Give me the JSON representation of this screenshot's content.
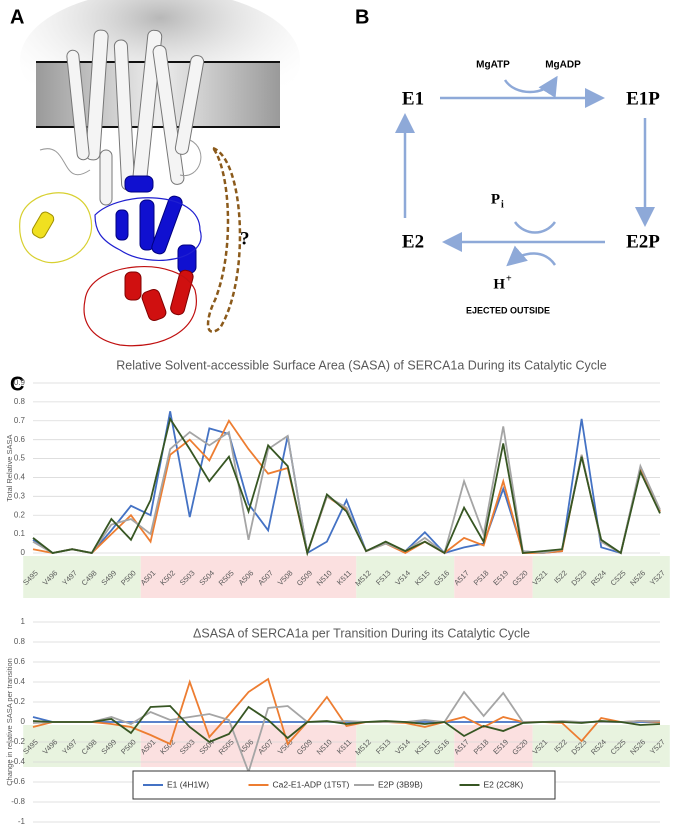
{
  "panels": {
    "a": "A",
    "b": "B",
    "c": "C"
  },
  "structure": {
    "question": "?"
  },
  "diagram": {
    "nodes": [
      "E1",
      "E1P",
      "E2P",
      "E2"
    ],
    "forward_in": "MgATP",
    "forward_out": "MgADP",
    "phosphate": "P",
    "phosphate_sub": "i",
    "proton": "H",
    "proton_sup": "+",
    "proton_note": "EJECTED OUTSIDE"
  },
  "chart_data": [
    {
      "type": "line",
      "title": "Relative Solvent-accessible Surface Area (SASA) of SERCA1a During its Catalytic Cycle",
      "y_label": "Total Relative SASA",
      "categories": [
        "S495",
        "V496",
        "Y497",
        "C498",
        "S499",
        "P500",
        "A501",
        "K502",
        "S503",
        "S504",
        "R505",
        "A506",
        "A507",
        "V508",
        "G509",
        "N510",
        "K511",
        "M512",
        "F513",
        "V514",
        "K515",
        "G516",
        "A517",
        "P518",
        "E519",
        "G520",
        "V521",
        "I522",
        "D523",
        "R524",
        "C525",
        "N526",
        "Y527"
      ],
      "ylim": [
        0,
        0.9
      ],
      "yticks": [
        0,
        0.1,
        0.2,
        0.3,
        0.4,
        0.5,
        0.6,
        0.7,
        0.8,
        0.9
      ],
      "grid": true,
      "series": [
        {
          "color": "#4472c4",
          "values": [
            0.07,
            0,
            0.02,
            0,
            0.12,
            0.25,
            0.2,
            0.75,
            0.19,
            0.66,
            0.63,
            0.26,
            0.12,
            0.62,
            0,
            0.06,
            0.28,
            0.01,
            0.05,
            0.01,
            0.11,
            0,
            0.03,
            0.05,
            0.34,
            0.01,
            0,
            0.01,
            0.71,
            0.03,
            0,
            0.45,
            0.22
          ]
        },
        {
          "color": "#ed7d31",
          "values": [
            0.02,
            0,
            0.02,
            0,
            0.1,
            0.2,
            0.06,
            0.52,
            0.6,
            0.49,
            0.7,
            0.55,
            0.42,
            0.45,
            0,
            0.3,
            0.23,
            0.01,
            0.05,
            0,
            0.06,
            0,
            0.08,
            0.04,
            0.38,
            0,
            0,
            0.01,
            0.52,
            0.06,
            0,
            0.45,
            0.22
          ]
        },
        {
          "color": "#a5a5a5",
          "values": [
            0.06,
            0,
            0.02,
            0,
            0.15,
            0.18,
            0.1,
            0.55,
            0.64,
            0.57,
            0.64,
            0.07,
            0.55,
            0.62,
            0,
            0.3,
            0.24,
            0.01,
            0.05,
            0.01,
            0.08,
            0,
            0.38,
            0.1,
            0.67,
            0.01,
            0,
            0.02,
            0.52,
            0.06,
            0,
            0.46,
            0.23
          ]
        },
        {
          "color": "#375623",
          "values": [
            0.08,
            0,
            0.02,
            0,
            0.18,
            0.07,
            0.28,
            0.71,
            0.55,
            0.38,
            0.51,
            0.22,
            0.57,
            0.46,
            0,
            0.31,
            0.22,
            0.01,
            0.06,
            0.01,
            0.06,
            0,
            0.24,
            0.06,
            0.58,
            0,
            0.01,
            0.02,
            0.51,
            0.07,
            0,
            0.43,
            0.21
          ]
        }
      ]
    },
    {
      "type": "line",
      "title": "ΔSASA of SERCA1a per Transition During its Catalytic Cycle",
      "y_label": "Change in relative SASA per transition",
      "categories": [
        "S495",
        "V496",
        "Y497",
        "C498",
        "S499",
        "P500",
        "A501",
        "K502",
        "S503",
        "S504",
        "R505",
        "A506",
        "A507",
        "V508",
        "G509",
        "N510",
        "K511",
        "M512",
        "F513",
        "V514",
        "K515",
        "G516",
        "A517",
        "P518",
        "E519",
        "G520",
        "V521",
        "I522",
        "D523",
        "R524",
        "C525",
        "N526",
        "Y527"
      ],
      "ylim": [
        -1,
        1
      ],
      "yticks": [
        -1,
        -0.8,
        -0.6,
        -0.4,
        -0.2,
        0,
        0.2,
        0.4,
        0.6,
        0.8,
        1
      ],
      "grid": true,
      "legend": "bottom",
      "series": [
        {
          "name": "E1 (4H1W)",
          "color": "#4472c4",
          "values": [
            0.05,
            0,
            0,
            0,
            0,
            0,
            0,
            0,
            0,
            0,
            0,
            0,
            0,
            0,
            0,
            0,
            0,
            0,
            0,
            0,
            0,
            0,
            0,
            0,
            0,
            0,
            0,
            0,
            0,
            0,
            0,
            0,
            0
          ]
        },
        {
          "name": "Ca2-E1-ADP (1T5T)",
          "color": "#ed7d31",
          "values": [
            -0.05,
            0,
            0,
            0,
            -0.02,
            -0.05,
            -0.13,
            -0.22,
            0.4,
            -0.15,
            0.07,
            0.3,
            0.43,
            -0.22,
            0,
            0.25,
            -0.04,
            0,
            0,
            -0.01,
            -0.05,
            0,
            0.05,
            -0.05,
            0.05,
            0,
            0,
            -0.01,
            -0.19,
            0.04,
            0,
            0.01,
            0
          ]
        },
        {
          "name": "E2P (3B9B)",
          "color": "#a5a5a5",
          "values": [
            -0.01,
            0,
            0,
            0,
            0.05,
            -0.02,
            0.1,
            0.02,
            0.05,
            0.08,
            0.02,
            -0.5,
            0.14,
            0.16,
            0,
            0,
            0.01,
            0,
            0,
            0,
            0.02,
            0,
            0.3,
            0.06,
            0.29,
            0,
            0,
            0.01,
            0,
            0,
            0,
            0.01,
            0.01
          ]
        },
        {
          "name": "E2 (2C8K)",
          "color": "#375623",
          "values": [
            0.01,
            0,
            0,
            0,
            0.03,
            -0.11,
            0.15,
            0.16,
            -0.05,
            -0.2,
            -0.12,
            0.15,
            0.02,
            -0.16,
            0,
            0.01,
            -0.02,
            0,
            0.01,
            0,
            -0.02,
            0,
            -0.14,
            -0.04,
            -0.09,
            -0.01,
            0,
            0,
            -0.01,
            0.01,
            0,
            -0.03,
            -0.02
          ]
        }
      ]
    }
  ]
}
